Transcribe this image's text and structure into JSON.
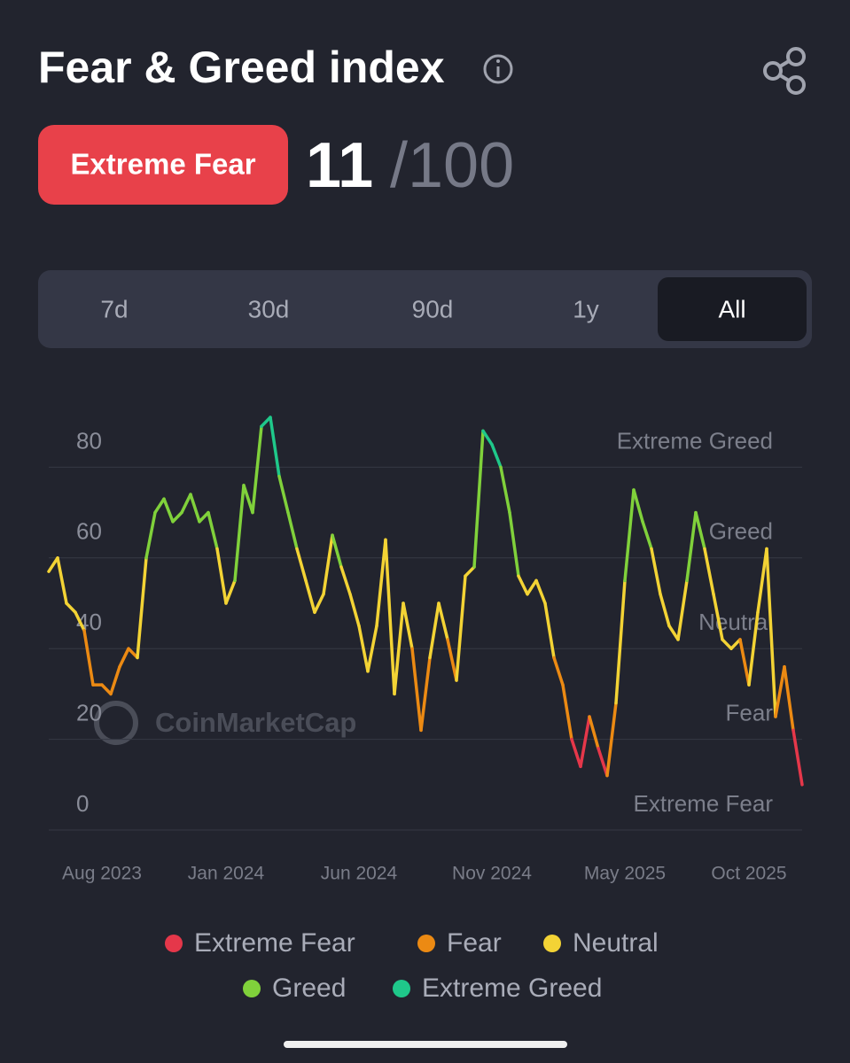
{
  "header": {
    "title": "Fear & Greed index",
    "badge": "Extreme Fear",
    "score": 11,
    "max": "/100"
  },
  "tabs": [
    {
      "label": "7d"
    },
    {
      "label": "30d"
    },
    {
      "label": "90d"
    },
    {
      "label": "1y"
    },
    {
      "label": "All",
      "selected": true
    }
  ],
  "chart_data": {
    "type": "line",
    "watermark": "CoinMarketCap",
    "categories": [
      null,
      null,
      null,
      null,
      null,
      null,
      "Aug 2023",
      null,
      null,
      null,
      null,
      null,
      null,
      null,
      null,
      null,
      null,
      null,
      null,
      null,
      "Jan 2024",
      null,
      null,
      null,
      null,
      null,
      null,
      null,
      null,
      null,
      null,
      null,
      null,
      null,
      null,
      "Jun 2024",
      null,
      null,
      null,
      null,
      null,
      null,
      null,
      null,
      null,
      null,
      null,
      null,
      null,
      null,
      "Nov 2024",
      null,
      null,
      null,
      null,
      null,
      null,
      null,
      null,
      null,
      null,
      null,
      null,
      null,
      null,
      "May 2025",
      null,
      null,
      null,
      null,
      null,
      null,
      null,
      null,
      null,
      null,
      null,
      null,
      null,
      "Oct 2025",
      null,
      null,
      null,
      null,
      null,
      null
    ],
    "values": [
      57,
      60,
      50,
      48,
      44,
      32,
      32,
      30,
      36,
      40,
      38,
      60,
      70,
      73,
      68,
      70,
      74,
      68,
      70,
      62,
      50,
      55,
      76,
      70,
      89,
      91,
      78,
      70,
      62,
      55,
      48,
      52,
      65,
      58,
      52,
      45,
      35,
      45,
      64,
      30,
      50,
      40,
      22,
      38,
      50,
      42,
      33,
      56,
      58,
      88,
      85,
      80,
      70,
      56,
      52,
      55,
      50,
      38,
      32,
      20,
      14,
      25,
      18,
      12,
      28,
      55,
      75,
      68,
      62,
      52,
      45,
      42,
      55,
      70,
      62,
      52,
      42,
      40,
      42,
      32,
      48,
      62,
      25,
      36,
      22,
      10
    ],
    "ylim": [
      0,
      100
    ],
    "yticks": [
      0,
      20,
      40,
      60,
      80
    ],
    "grid": true,
    "zones": [
      {
        "name": "Extreme Fear",
        "color": "#e5374a"
      },
      {
        "name": "Fear",
        "color": "#ec8a13"
      },
      {
        "name": "Neutral",
        "color": "#f3d335"
      },
      {
        "name": "Greed",
        "color": "#80d13b"
      },
      {
        "name": "Extreme Greed",
        "color": "#1fc88a"
      }
    ]
  }
}
